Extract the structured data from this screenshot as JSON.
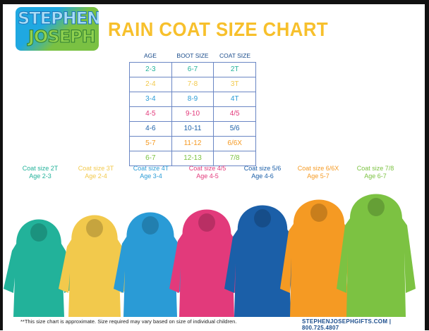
{
  "brand": {
    "logo_line1": "STEPHEN",
    "logo_line2": "JOSEPH"
  },
  "title": "RAIN COAT SIZE CHART",
  "table": {
    "headers": [
      "AGE",
      "BOOT SIZE",
      "COAT SIZE"
    ],
    "rows": [
      {
        "age": "2-3",
        "boot": "6-7",
        "coat": "2T",
        "color": "#22b29a"
      },
      {
        "age": "2-4",
        "boot": "7-8",
        "coat": "3T",
        "color": "#f2c94c"
      },
      {
        "age": "3-4",
        "boot": "8-9",
        "coat": "4T",
        "color": "#2a9bd6"
      },
      {
        "age": "4-5",
        "boot": "9-10",
        "coat": "4/5",
        "color": "#e23a7b"
      },
      {
        "age": "4-6",
        "boot": "10-11",
        "coat": "5/6",
        "color": "#1b5fa8"
      },
      {
        "age": "5-7",
        "boot": "11-12",
        "coat": "6/6X",
        "color": "#f59a23"
      },
      {
        "age": "6-7",
        "boot": "12-13",
        "coat": "7/8",
        "color": "#7cc242"
      }
    ]
  },
  "coats": [
    {
      "name": "Coat size 2T",
      "age": "Age 2-3",
      "color": "#22b29a"
    },
    {
      "name": "Coat size 3T",
      "age": "Age 2-4",
      "color": "#f2c94c"
    },
    {
      "name": "Coat size 4T",
      "age": "Age 3-4",
      "color": "#2a9bd6"
    },
    {
      "name": "Coat size 4/5",
      "age": "Age 4-5",
      "color": "#e23a7b"
    },
    {
      "name": "Coat size 5/6",
      "age": "Age 4-6",
      "color": "#1b5fa8"
    },
    {
      "name": "Coat size 6/6X",
      "age": "Age 5-7",
      "color": "#f59a23"
    },
    {
      "name": "Coat size 7/8",
      "age": "Age 6-7",
      "color": "#7cc242"
    }
  ],
  "footer": {
    "disclaimer": "**This size chart is approximate. Size required may vary based on size of individual children.",
    "contact": "STEPHENJOSEPHGIFTS.COM  |  800.725.4807"
  }
}
